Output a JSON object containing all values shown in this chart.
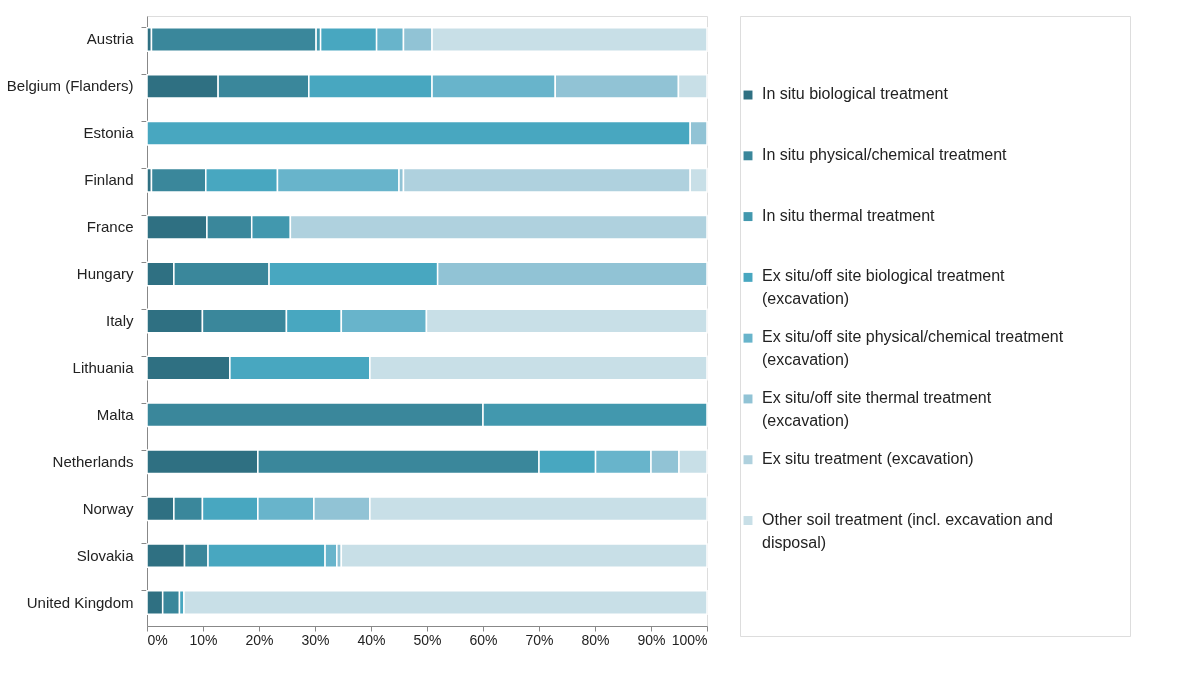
{
  "chart_data": {
    "type": "bar",
    "orientation": "horizontal",
    "stacked": true,
    "categories": [
      "Austria",
      "Belgium (Flanders)",
      "Estonia",
      "Finland",
      "France",
      "Hungary",
      "Italy",
      "Lithuania",
      "Malta",
      "Netherlands",
      "Norway",
      "Slovakia",
      "United Kingdom"
    ],
    "series": [
      {
        "name": "In situ biological treatment",
        "color": "#2f7082",
        "values": [
          0.8,
          12.7,
          0,
          0.8,
          10.7,
          4.8,
          9.9,
          14.8,
          0,
          19.8,
          4.8,
          6.7,
          2.8
        ]
      },
      {
        "name": "In situ physical/chemical treatment",
        "color": "#3a879b",
        "values": [
          29.4,
          16.2,
          0,
          9.7,
          8,
          17,
          15,
          0,
          60,
          50.2,
          5.1,
          4.2,
          3
        ]
      },
      {
        "name": "In situ thermal treatment",
        "color": "#4298ae",
        "values": [
          0.8,
          0,
          0,
          0,
          6.9,
          0,
          0,
          0,
          40,
          0,
          0,
          0,
          0
        ]
      },
      {
        "name": "Ex situ/off site biological treatment (excavation)",
        "color": "#48a7c0",
        "values": [
          10,
          22,
          97,
          12.8,
          0,
          30.1,
          9.8,
          25,
          0,
          10.1,
          9.9,
          20.9,
          0.8
        ]
      },
      {
        "name": "Ex situ/off site physical/chemical treatment (excavation)",
        "color": "#68b4cb",
        "values": [
          4.8,
          22,
          0,
          21.7,
          0,
          0,
          15.2,
          0,
          0,
          9.9,
          10,
          2.1,
          0
        ]
      },
      {
        "name": "Ex situ/off site thermal treatment (excavation)",
        "color": "#91c3d5",
        "values": [
          5.1,
          22,
          3,
          0.8,
          0,
          48.1,
          0,
          0,
          0,
          5,
          10,
          0.8,
          0
        ]
      },
      {
        "name": "Ex situ treatment (excavation)",
        "color": "#afd1de",
        "values": [
          0,
          0,
          0,
          51.2,
          74.4,
          0,
          0,
          0,
          0,
          0,
          0,
          0,
          0
        ]
      },
      {
        "name": "Other soil treatment (incl. excavation and disposal)",
        "color": "#c8dfe7",
        "values": [
          49.1,
          5.1,
          0,
          3,
          0,
          0,
          50.1,
          60.2,
          0,
          5,
          60.2,
          65.3,
          93.4
        ]
      }
    ],
    "xlim": [
      0,
      100
    ],
    "xticks": [
      {
        "value": 0,
        "label": "0%"
      },
      {
        "value": 10,
        "label": "10%"
      },
      {
        "value": 20,
        "label": "20%"
      },
      {
        "value": 30,
        "label": "30%"
      },
      {
        "value": 40,
        "label": "40%"
      },
      {
        "value": 50,
        "label": "50%"
      },
      {
        "value": 60,
        "label": "60%"
      },
      {
        "value": 70,
        "label": "70%"
      },
      {
        "value": 80,
        "label": "80%"
      },
      {
        "value": 90,
        "label": "90%"
      },
      {
        "value": 100,
        "label": "100%"
      }
    ],
    "grid": false,
    "legend": "right"
  }
}
